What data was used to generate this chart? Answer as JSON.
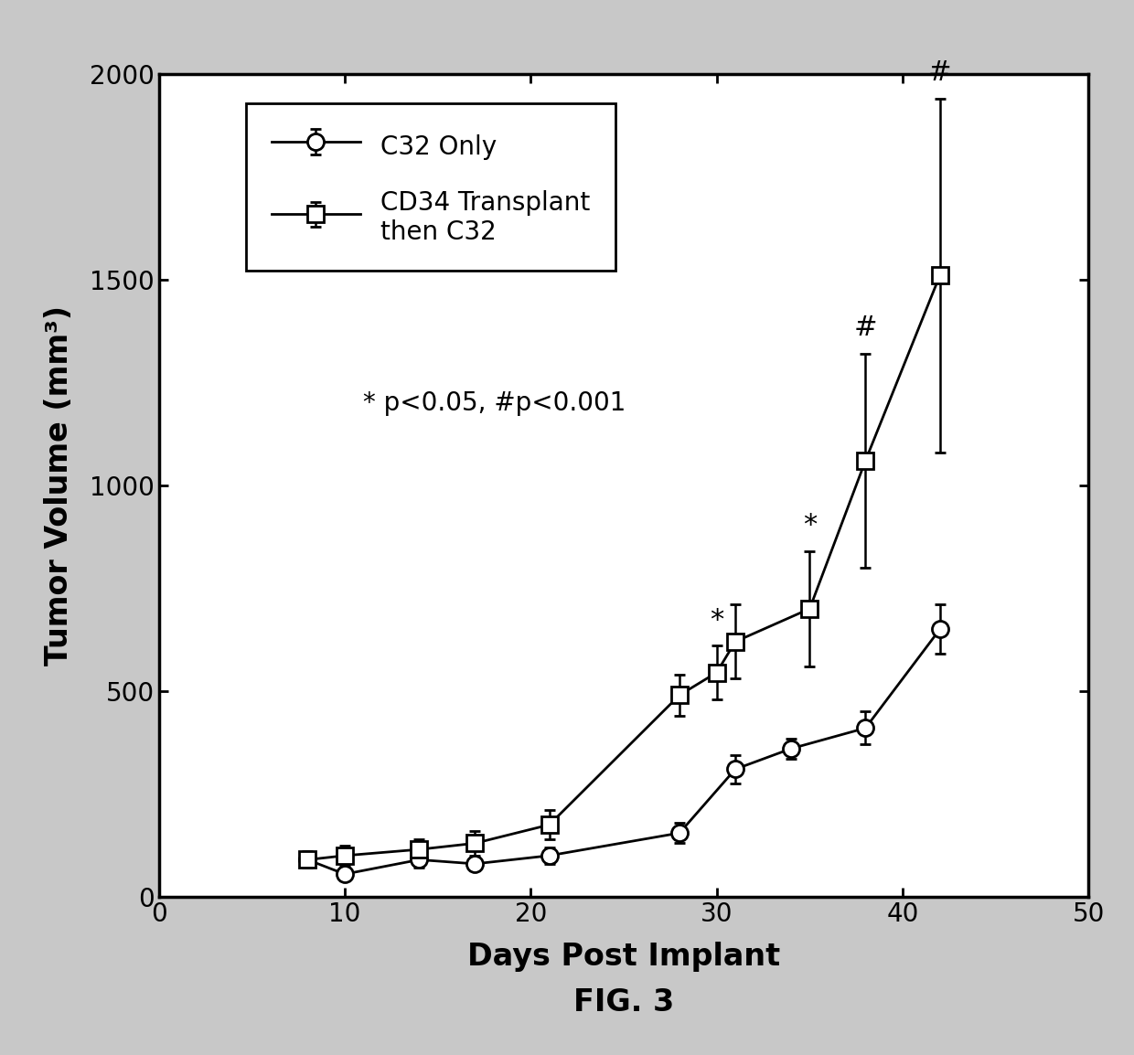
{
  "c32_x": [
    8,
    10,
    14,
    17,
    21,
    28,
    31,
    34,
    38,
    42
  ],
  "c32_y": [
    90,
    55,
    90,
    80,
    100,
    155,
    310,
    360,
    410,
    650
  ],
  "c32_yerr": [
    15,
    15,
    20,
    15,
    20,
    25,
    35,
    25,
    40,
    60
  ],
  "cd34_x": [
    8,
    10,
    14,
    17,
    21,
    28,
    30,
    31,
    35,
    38,
    42
  ],
  "cd34_y": [
    90,
    100,
    115,
    130,
    175,
    490,
    545,
    620,
    700,
    1060,
    1510
  ],
  "cd34_yerr": [
    20,
    25,
    25,
    30,
    35,
    50,
    65,
    90,
    140,
    260,
    430
  ],
  "xlabel": "Days Post Implant",
  "ylabel": "Tumor Volume (mm³)",
  "fig_title": "FIG. 3",
  "legend_label_1": "C32 Only",
  "legend_label_2": "CD34 Transplant\nthen C32",
  "annotation_text": "* p<0.05, #p<0.001",
  "xlim": [
    0,
    50
  ],
  "ylim": [
    0,
    2000
  ],
  "xticks": [
    0,
    10,
    20,
    30,
    40,
    50
  ],
  "yticks": [
    0,
    500,
    1000,
    1500,
    2000
  ],
  "outer_bg": "#c8c8c8",
  "inner_bg": "#ffffff",
  "line_color": "#000000",
  "markersize": 13,
  "linewidth": 2.0
}
